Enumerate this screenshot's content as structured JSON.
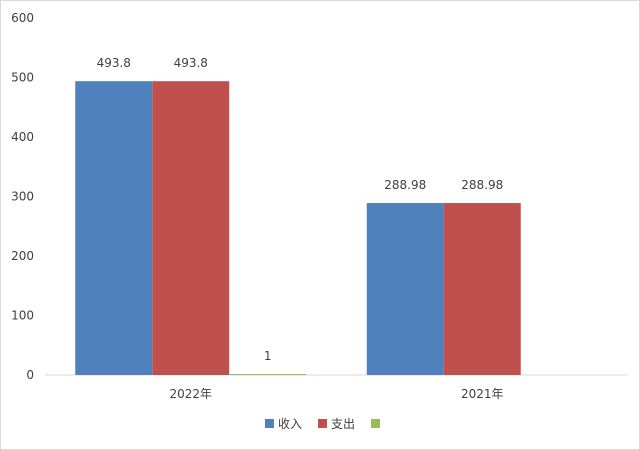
{
  "chart_data": {
    "type": "bar",
    "categories": [
      "2022年",
      "2021年"
    ],
    "series": [
      {
        "name": "收入",
        "values": [
          493.8,
          288.98
        ],
        "labels": [
          "493.8",
          "288.98"
        ],
        "color": "#4f81bd"
      },
      {
        "name": "支出",
        "values": [
          493.8,
          288.98
        ],
        "labels": [
          "493.8",
          "288.98"
        ],
        "color": "#c0504d"
      },
      {
        "name": "",
        "values": [
          1,
          null
        ],
        "labels": [
          "1",
          ""
        ],
        "color": "#9bbb59"
      }
    ],
    "ylim": [
      0,
      600
    ],
    "yticks": [
      0,
      100,
      200,
      300,
      400,
      500,
      600
    ],
    "grid": false,
    "legend": "bottom"
  }
}
